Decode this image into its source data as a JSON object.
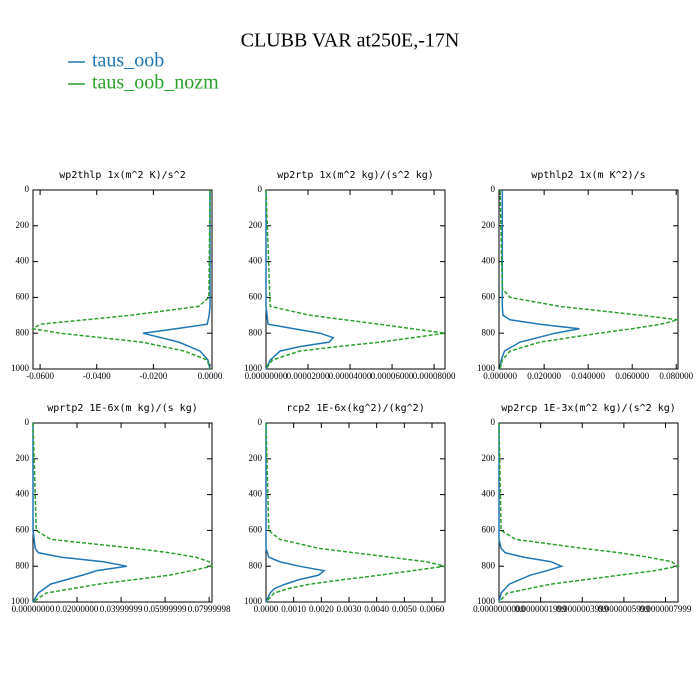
{
  "title": "CLUBB VAR at250E,-17N",
  "chart_data": [
    {
      "type": "line",
      "title": "wp2thlp   1x(m^2 K)/s^2",
      "y": [
        0,
        600,
        650,
        700,
        750,
        775,
        800,
        850,
        900,
        950,
        1000
      ],
      "series": [
        {
          "name": "taus_oob",
          "color": "#1f77b4",
          "values": [
            0,
            0,
            0,
            -0.0003,
            -0.001,
            -0.012,
            -0.0237,
            -0.011,
            -0.0035,
            -0.0007,
            0
          ]
        },
        {
          "name": "taus_oob_nozm",
          "color": "#2ca02c",
          "values": [
            0,
            -0.0004,
            -0.004,
            -0.028,
            -0.06,
            -0.0625,
            -0.053,
            -0.024,
            -0.009,
            -0.001,
            0
          ]
        }
      ],
      "xlim": [
        -0.0625,
        0.0007
      ],
      "ylim": [
        1000,
        0
      ],
      "xticks": [
        {
          "value": -0.06,
          "label": "-0.0600"
        },
        {
          "value": -0.04,
          "label": "-0.0400"
        },
        {
          "value": -0.02,
          "label": "-0.0200"
        },
        {
          "value": 0,
          "label": "0.0000"
        }
      ],
      "yticks": [
        0,
        200,
        400,
        600,
        800,
        1000
      ]
    },
    {
      "type": "line",
      "title": "wp2rtp   1x(m^2 kg)/(s^2 kg)",
      "y": [
        0,
        650,
        700,
        750,
        800,
        825,
        850,
        875,
        900,
        950,
        1000
      ],
      "series": [
        {
          "color": "#1f77b4",
          "values": [
            0,
            0,
            5e-07,
            1e-06,
            2.57e-05,
            3.2e-05,
            3e-05,
            1.6e-05,
            6.7e-06,
            2e-06,
            0
          ]
        },
        {
          "color": "#2ca02c",
          "values": [
            0,
            2e-06,
            2.1e-05,
            5.4e-05,
            8.52e-05,
            7e-05,
            5.4e-05,
            3.4e-05,
            1.6e-05,
            3e-06,
            0
          ]
        }
      ],
      "xlim": [
        0,
        8.52e-05
      ],
      "ylim": [
        1000,
        0
      ],
      "xticks": [
        {
          "value": 0,
          "label": "0.00000000"
        },
        {
          "value": 2e-05,
          "label": "0.00002000"
        },
        {
          "value": 4e-05,
          "label": "0.00004000"
        },
        {
          "value": 6e-05,
          "label": "0.00006000"
        },
        {
          "value": 8e-05,
          "label": "0.00008000"
        }
      ],
      "yticks": [
        0,
        200,
        400,
        600,
        800,
        1000
      ]
    },
    {
      "type": "line",
      "title": "wpthlp2   1x(m K^2)/s",
      "y": [
        0,
        550,
        600,
        650,
        700,
        725,
        750,
        775,
        800,
        850,
        900,
        950,
        1000
      ],
      "series": [
        {
          "color": "#1f77b4",
          "values": [
            0.001,
            0.001,
            0.001,
            0.001,
            0.0013,
            0.0045,
            0.018,
            0.036,
            0.025,
            0.009,
            0.002,
            0.0005,
            0
          ]
        },
        {
          "color": "#2ca02c",
          "values": [
            0,
            0.001,
            0.0045,
            0.027,
            0.064,
            0.0808,
            0.073,
            0.06,
            0.045,
            0.018,
            0.0045,
            0.001,
            0
          ]
        }
      ],
      "xlim": [
        -0.0005,
        0.0808
      ],
      "ylim": [
        1000,
        0
      ],
      "xticks": [
        {
          "value": 0,
          "label": "0.000000"
        },
        {
          "value": 0.02,
          "label": "0.020000"
        },
        {
          "value": 0.04,
          "label": "0.040000"
        },
        {
          "value": 0.06,
          "label": "0.060000"
        },
        {
          "value": 0.08,
          "label": "0.080000"
        }
      ],
      "yticks": [
        0,
        200,
        400,
        600,
        800,
        1000
      ]
    },
    {
      "type": "line",
      "title": "wprtp2   1E-6x(m kg)/(s kg)",
      "y": [
        0,
        600,
        650,
        700,
        725,
        750,
        775,
        800,
        825,
        850,
        900,
        950,
        1000
      ],
      "series": [
        {
          "color": "#1f77b4",
          "values": [
            0,
            0,
            0.0005,
            0.001,
            0.0025,
            0.013,
            0.032,
            0.0426,
            0.029,
            0.0225,
            0.008,
            0.0024,
            0
          ]
        },
        {
          "color": "#2ca02c",
          "values": [
            0,
            0.0015,
            0.008,
            0.046,
            0.062,
            0.074,
            0.08,
            0.0813,
            0.072,
            0.062,
            0.03,
            0.006,
            0
          ]
        }
      ],
      "xlim": [
        0,
        0.0813
      ],
      "ylim": [
        1000,
        0
      ],
      "xticks": [
        {
          "value": 0,
          "label": "0.00000000"
        },
        {
          "value": 0.02,
          "label": "0.02000000"
        },
        {
          "value": 0.04,
          "label": "0.03999999"
        },
        {
          "value": 0.06,
          "label": "0.05999999"
        },
        {
          "value": 0.08,
          "label": "0.07999998"
        }
      ],
      "yticks": [
        0,
        200,
        400,
        600,
        800,
        1000
      ]
    },
    {
      "type": "line",
      "title": "rcp2   1E-6x(kg^2)/(kg^2)",
      "y": [
        0,
        600,
        650,
        700,
        750,
        775,
        800,
        825,
        850,
        875,
        900,
        925,
        950,
        1000
      ],
      "series": [
        {
          "color": "#1f77b4",
          "values": [
            0,
            0,
            0,
            0,
            0.0001,
            0.0005,
            0.0012,
            0.0021,
            0.0019,
            0.0012,
            0.0007,
            0.0003,
            0.00015,
            0
          ]
        },
        {
          "color": "#2ca02c",
          "values": [
            0,
            0.0001,
            0.0005,
            0.0019,
            0.0045,
            0.0058,
            0.00647,
            0.0053,
            0.0041,
            0.0028,
            0.0016,
            0.0008,
            0.0003,
            0
          ]
        }
      ],
      "xlim": [
        0,
        0.00647
      ],
      "ylim": [
        1000,
        0
      ],
      "xticks": [
        {
          "value": 0,
          "label": "0.0000"
        },
        {
          "value": 0.001,
          "label": "0.0010"
        },
        {
          "value": 0.002,
          "label": "0.0020"
        },
        {
          "value": 0.003,
          "label": "0.0030"
        },
        {
          "value": 0.004,
          "label": "0.0040"
        },
        {
          "value": 0.005,
          "label": "0.0050"
        },
        {
          "value": 0.006,
          "label": "0.0060"
        }
      ],
      "yticks": [
        0,
        200,
        400,
        600,
        800,
        1000
      ]
    },
    {
      "type": "line",
      "title": "wp2rcp   1E-3x(m^2 kg)/(s^2 kg)",
      "y": [
        0,
        600,
        650,
        700,
        725,
        750,
        775,
        800,
        825,
        850,
        900,
        950,
        1000
      ],
      "series": [
        {
          "color": "#1f77b4",
          "values": [
            0,
            0,
            0,
            1e-08,
            3e-08,
            1.2e-07,
            2.5e-07,
            3e-07,
            2.3e-07,
            1.5e-07,
            5e-08,
            1e-08,
            0
          ]
        },
        {
          "color": "#2ca02c",
          "values": [
            0,
            1e-08,
            8e-08,
            4e-07,
            5.8e-07,
            7.2e-07,
            8.3e-07,
            8.6e-07,
            7.5e-07,
            5.8e-07,
            2.5e-07,
            4e-08,
            0
          ]
        }
      ],
      "xlim": [
        0,
        8.6e-07
      ],
      "ylim": [
        1000,
        0
      ],
      "xticks": [
        {
          "value": 0,
          "label": "0.0000000000"
        },
        {
          "value": 2e-07,
          "label": "0.0000001999"
        },
        {
          "value": 4e-07,
          "label": "0.0000003999"
        },
        {
          "value": 6e-07,
          "label": "0.0000005999"
        },
        {
          "value": 8e-07,
          "label": "0.0000007999"
        }
      ],
      "yticks": [
        0,
        200,
        400,
        600,
        800,
        1000
      ]
    }
  ]
}
